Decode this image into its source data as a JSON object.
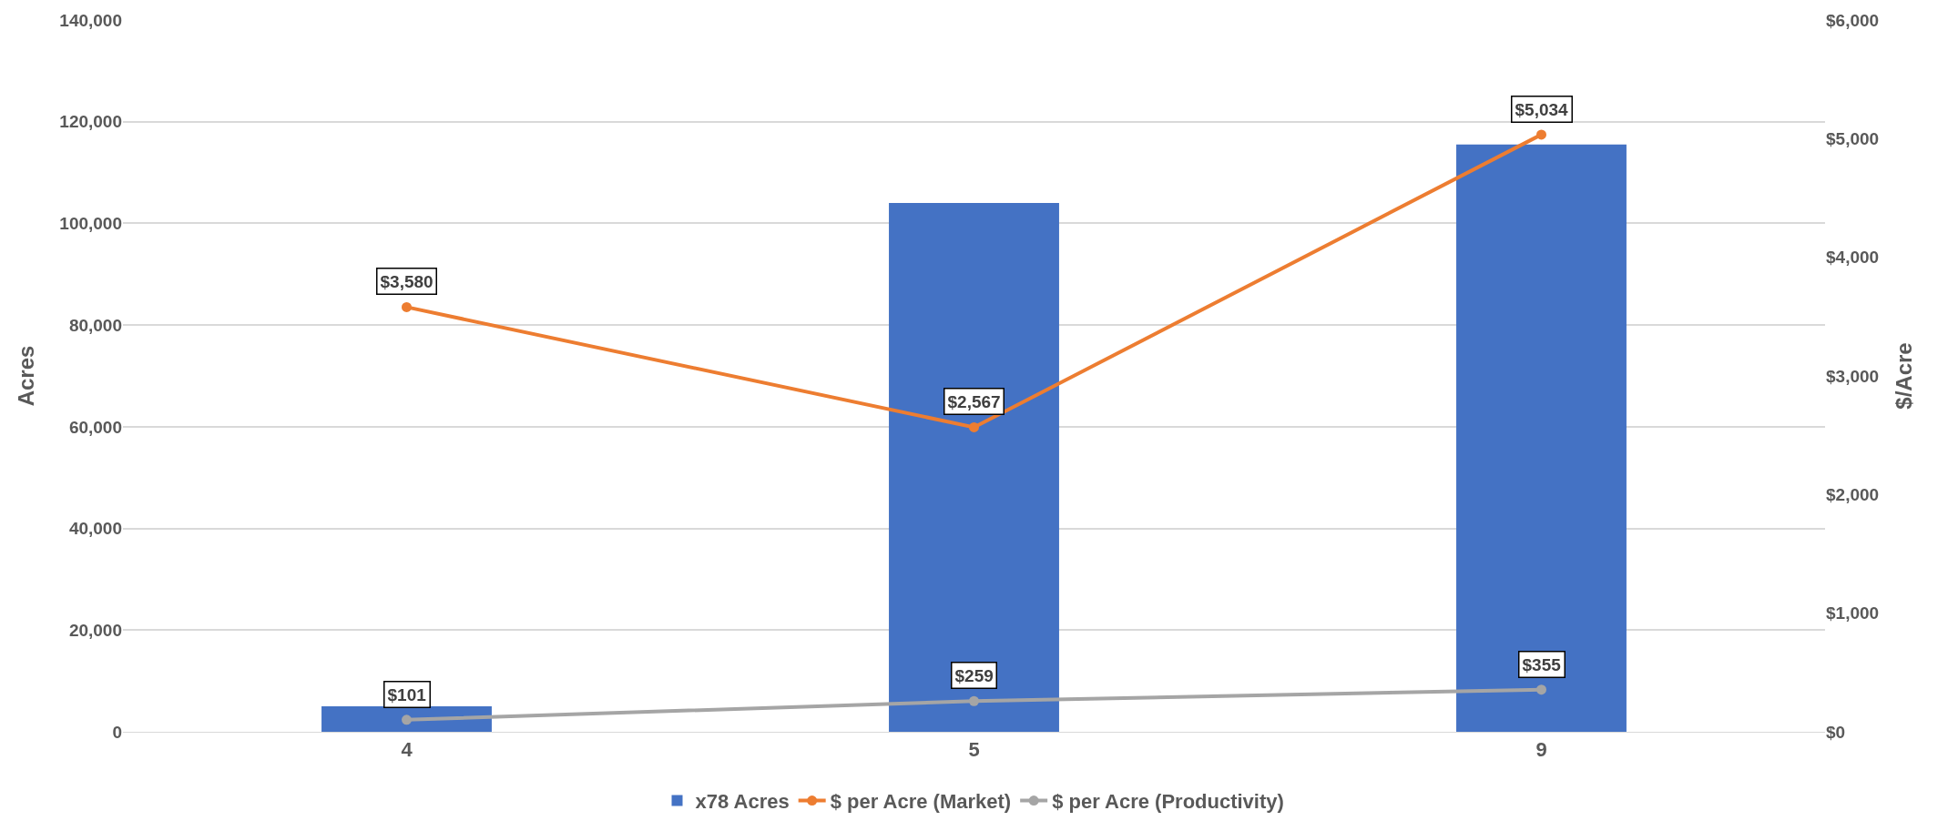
{
  "chart_data": {
    "type": "bar",
    "ylabel": "Acres",
    "y2label": "$/Acre",
    "categories": [
      "4",
      "5",
      "9"
    ],
    "series": [
      {
        "name": "x78 Acres",
        "color": "#4472c4",
        "values": [
          5000,
          104000,
          115500
        ]
      },
      {
        "name": "$ per Acre (Market)",
        "type": "line",
        "axis": "y2",
        "color": "#ed7d31",
        "marker": "circle",
        "values": [
          3580,
          2567,
          5034
        ],
        "value_labels": [
          "$3,580",
          "$2,567",
          "$5,034"
        ]
      },
      {
        "name": "$ per Acre (Productivity)",
        "type": "line",
        "axis": "y2",
        "color": "#a5a5a5",
        "marker": "circle",
        "values": [
          101,
          259,
          355
        ],
        "value_labels": [
          "$101",
          "$259",
          "$355"
        ]
      }
    ],
    "ylim": [
      0,
      140000
    ],
    "yticks": [
      0,
      {
        "value": 20000,
        "label": "20,000"
      },
      {
        "value": 40000,
        "label": "40,000"
      },
      {
        "value": 60000,
        "label": "60,000"
      },
      {
        "value": 80000,
        "label": "80,000"
      },
      {
        "value": 100000,
        "label": "100,000"
      },
      {
        "value": 120000,
        "label": "120,000"
      },
      {
        "value": 140000,
        "label": "140,000"
      }
    ],
    "y2lim": [
      0,
      6000
    ],
    "y2ticks": [
      {
        "value": 0,
        "label": "$0"
      },
      {
        "value": 1000,
        "label": "$1,000"
      },
      {
        "value": 2000,
        "label": "$2,000"
      },
      {
        "value": 3000,
        "label": "$3,000"
      },
      {
        "value": 4000,
        "label": "$4,000"
      },
      {
        "value": 5000,
        "label": "$5,000"
      },
      {
        "value": 6000,
        "label": "$6,000"
      }
    ],
    "grid": "y",
    "legend": "bottom"
  }
}
